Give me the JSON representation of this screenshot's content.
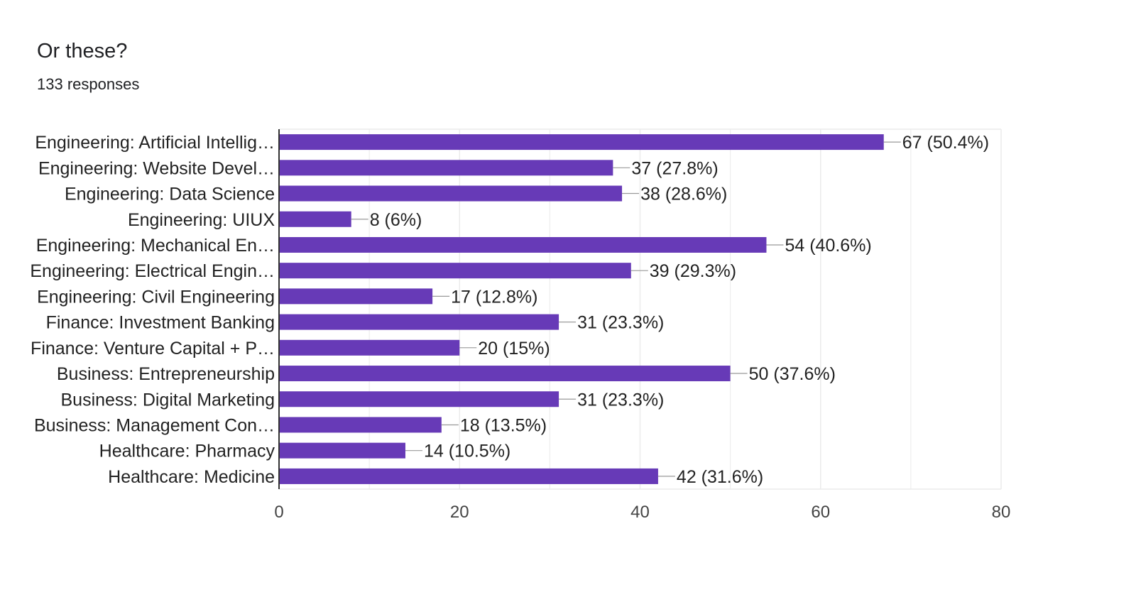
{
  "header": {
    "title": "Or these?",
    "responses": "133 responses"
  },
  "colors": {
    "bar": "#673ab7",
    "grid": "#ebebeb",
    "axis": "#333333"
  },
  "chart_data": {
    "type": "bar",
    "orientation": "horizontal",
    "title": "Or these?",
    "categories": [
      "Engineering: Artificial Intellig…",
      "Engineering: Website Devel…",
      "Engineering: Data Science",
      "Engineering: UIUX",
      "Engineering: Mechanical En…",
      "Engineering: Electrical Engin…",
      "Engineering: Civil Engineering",
      "Finance: Investment Banking",
      "Finance: Venture Capital + P…",
      "Business: Entrepreneurship",
      "Business: Digital Marketing",
      "Business: Management Con…",
      "Healthcare: Pharmacy",
      "Healthcare: Medicine"
    ],
    "values": [
      67,
      37,
      38,
      8,
      54,
      39,
      17,
      31,
      20,
      50,
      31,
      18,
      14,
      42
    ],
    "data_labels": [
      "67 (50.4%)",
      "37 (27.8%)",
      "38 (28.6%)",
      "8 (6%)",
      "54 (40.6%)",
      "39 (29.3%)",
      "17 (12.8%)",
      "31 (23.3%)",
      "20 (15%)",
      "50 (37.6%)",
      "31 (23.3%)",
      "18 (13.5%)",
      "14 (10.5%)",
      "42 (31.6%)"
    ],
    "xlim": [
      0,
      80
    ],
    "xticks": [
      "0",
      "20",
      "40",
      "60",
      "80"
    ],
    "grid": true
  }
}
